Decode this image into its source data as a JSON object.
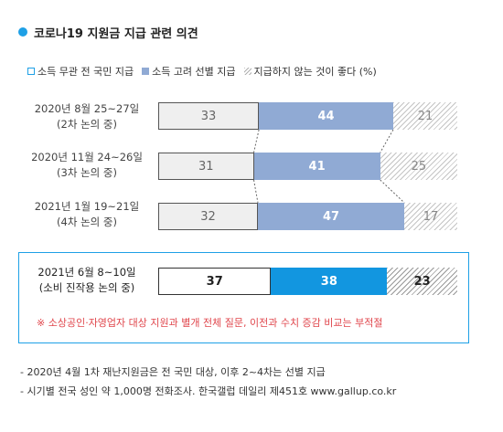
{
  "title": "코로나19 지원금 지급 관련 의견",
  "legend": {
    "a": "소득 무관 전 국민 지급",
    "b": "소득 고려 선별 지급",
    "c": "지급하지 않는 것이 좋다 (%)"
  },
  "chart_data": {
    "type": "bar",
    "orientation": "horizontal",
    "stacked": true,
    "title": "코로나19 지원금 지급 관련 의견",
    "unit": "%",
    "categories": [
      [
        "2020년 8월 25~27일",
        "(2차 논의 중)"
      ],
      [
        "2020년 11월 24~26일",
        "(3차 논의 중)"
      ],
      [
        "2021년 1월 19~21일",
        "(4차 논의 중)"
      ],
      [
        "2021년 6월 8~10일",
        "(소비 진작용 논의 중)"
      ]
    ],
    "series": [
      {
        "name": "소득 무관 전 국민 지급",
        "values": [
          33,
          31,
          32,
          37
        ]
      },
      {
        "name": "소득 고려 선별 지급",
        "values": [
          44,
          41,
          47,
          38
        ]
      },
      {
        "name": "지급하지 않는 것이 좋다",
        "values": [
          21,
          25,
          17,
          23
        ]
      }
    ],
    "xlim": [
      0,
      100
    ],
    "grid": false,
    "legend_position": "top"
  },
  "highlight_note": "※ 소상공인·자영업자 대상 지원과 별개 전체 질문, 이전과 수치 증감 비교는 부적절",
  "footnotes": [
    "- 2020년 4월 1차 재난지원금은 전 국민 대상, 이후 2~4차는 선별 지급",
    "- 시기별 전국 성인 약 1,000명 전화조사. 한국갤럽 데일리 제451호 www.gallup.co.kr"
  ],
  "colors": {
    "accent": "#1ea0e6",
    "series_b": "#90aad4",
    "highlight_b": "#1296e0",
    "note_red": "#e0464c"
  }
}
